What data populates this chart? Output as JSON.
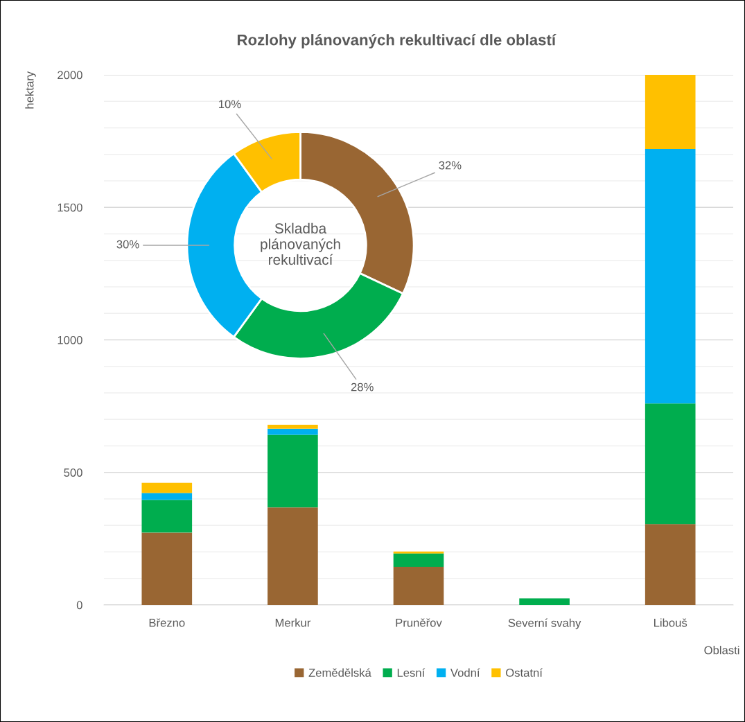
{
  "chart_data": [
    {
      "type": "bar",
      "stacked": true,
      "title": "Rozlohy plánovaných rekultivací dle oblastí",
      "xlabel": "Oblasti",
      "ylabel": "hektary",
      "categories": [
        "Březno",
        "Merkur",
        "Pruněřov",
        "Severní svahy",
        "Libouš"
      ],
      "series": [
        {
          "name": "Zemědělská",
          "color": "#996633",
          "values": [
            273,
            368,
            144,
            0,
            305
          ]
        },
        {
          "name": "Lesní",
          "color": "#00ad4e",
          "values": [
            123,
            274,
            50,
            25,
            455
          ]
        },
        {
          "name": "Vodní",
          "color": "#00b0f0",
          "values": [
            26,
            23,
            0,
            0,
            960
          ]
        },
        {
          "name": "Ostatní",
          "color": "#ffc000",
          "values": [
            39,
            15,
            7,
            0,
            280
          ]
        }
      ],
      "ylim": [
        0,
        2000
      ],
      "yticks": [
        0,
        500,
        1000,
        1500,
        2000
      ],
      "grid": "y",
      "legend": "bottom"
    },
    {
      "type": "donut",
      "title": "Skladba plánovaných rekultivací",
      "values": [
        32,
        28,
        30,
        10
      ],
      "colors": [
        "#996633",
        "#00ad4e",
        "#00b0f0",
        "#ffc000"
      ],
      "value_labels": [
        "32%",
        "28%",
        "30%",
        "10%"
      ]
    }
  ]
}
